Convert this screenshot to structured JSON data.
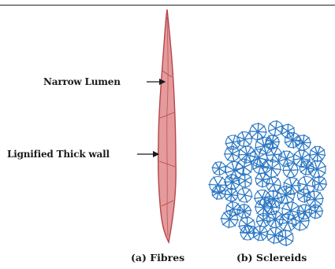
{
  "labels": {
    "narrow_lumen": "Narrow Lumen",
    "lignified_wall": "Lignified Thick wall"
  },
  "captions": {
    "fibres": "(a) Fibres",
    "sclereids": "(b) Sclereids"
  },
  "colors": {
    "fibre_fill": "#e59a9c",
    "fibre_stroke": "#b2474c",
    "sclereid_stroke": "#2a76c2",
    "text": "#1b1b1b"
  }
}
